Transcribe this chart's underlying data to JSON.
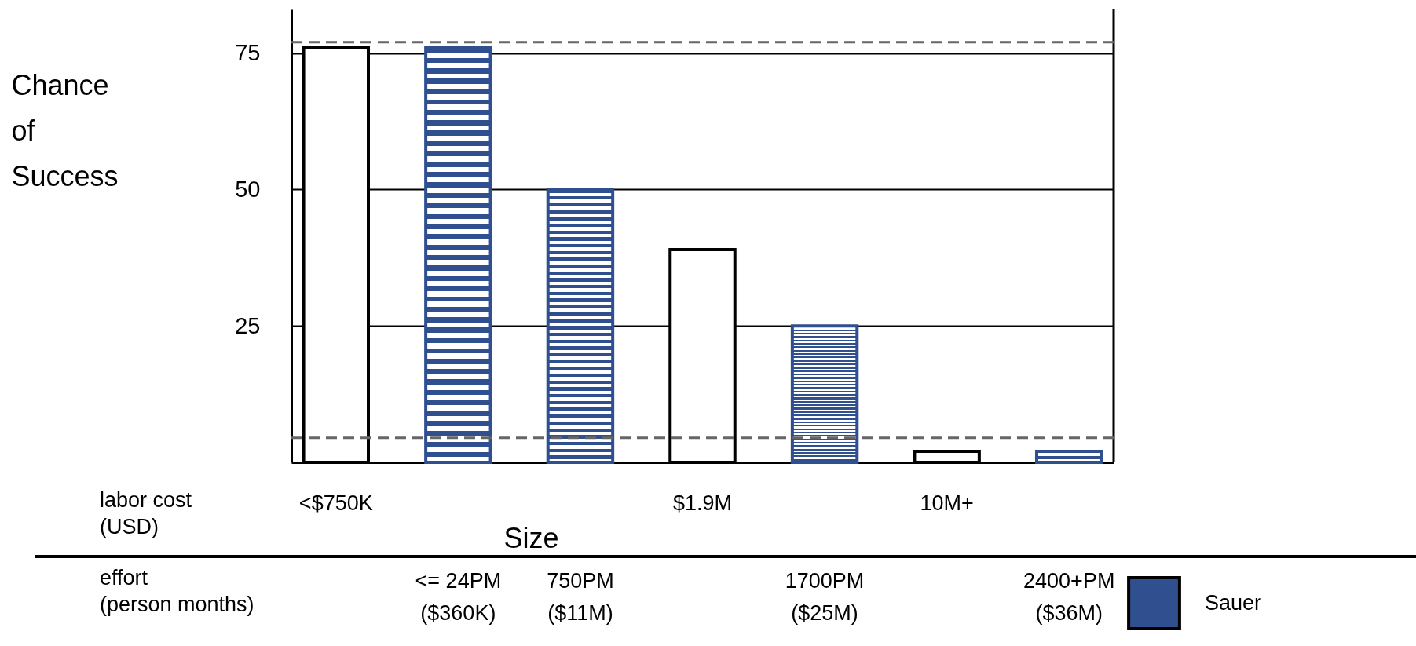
{
  "chart_data": {
    "type": "bar",
    "ylabel": "Chance of Success",
    "xlabel": "Size",
    "categories": [
      "<$750K",
      "<= 24PM ($360K)",
      "750PM ($11M)",
      "$1.9M",
      "1700PM ($25M)",
      "10M+",
      "2400+PM ($36M)"
    ],
    "series": [
      {
        "color": "#ffffff",
        "values": [
          76,
          null,
          null,
          39,
          null,
          2,
          null
        ]
      },
      {
        "name": "Sauer",
        "color": "#2f4f8f",
        "values": [
          null,
          76,
          50,
          null,
          25,
          null,
          2
        ]
      }
    ],
    "ylim": [
      0,
      83
    ],
    "yticks": [
      25,
      50,
      75
    ],
    "grid": "y",
    "legend": "bottom right",
    "ref_lines": [
      {
        "axis": "y",
        "value": 77,
        "color": "#666666",
        "line_style": "dashed"
      },
      {
        "axis": "y",
        "value": 4.5,
        "color": "#666666",
        "line_style": "dashed"
      }
    ],
    "annotations": [
      "labor cost (USD)",
      "effort (person months)"
    ]
  }
}
